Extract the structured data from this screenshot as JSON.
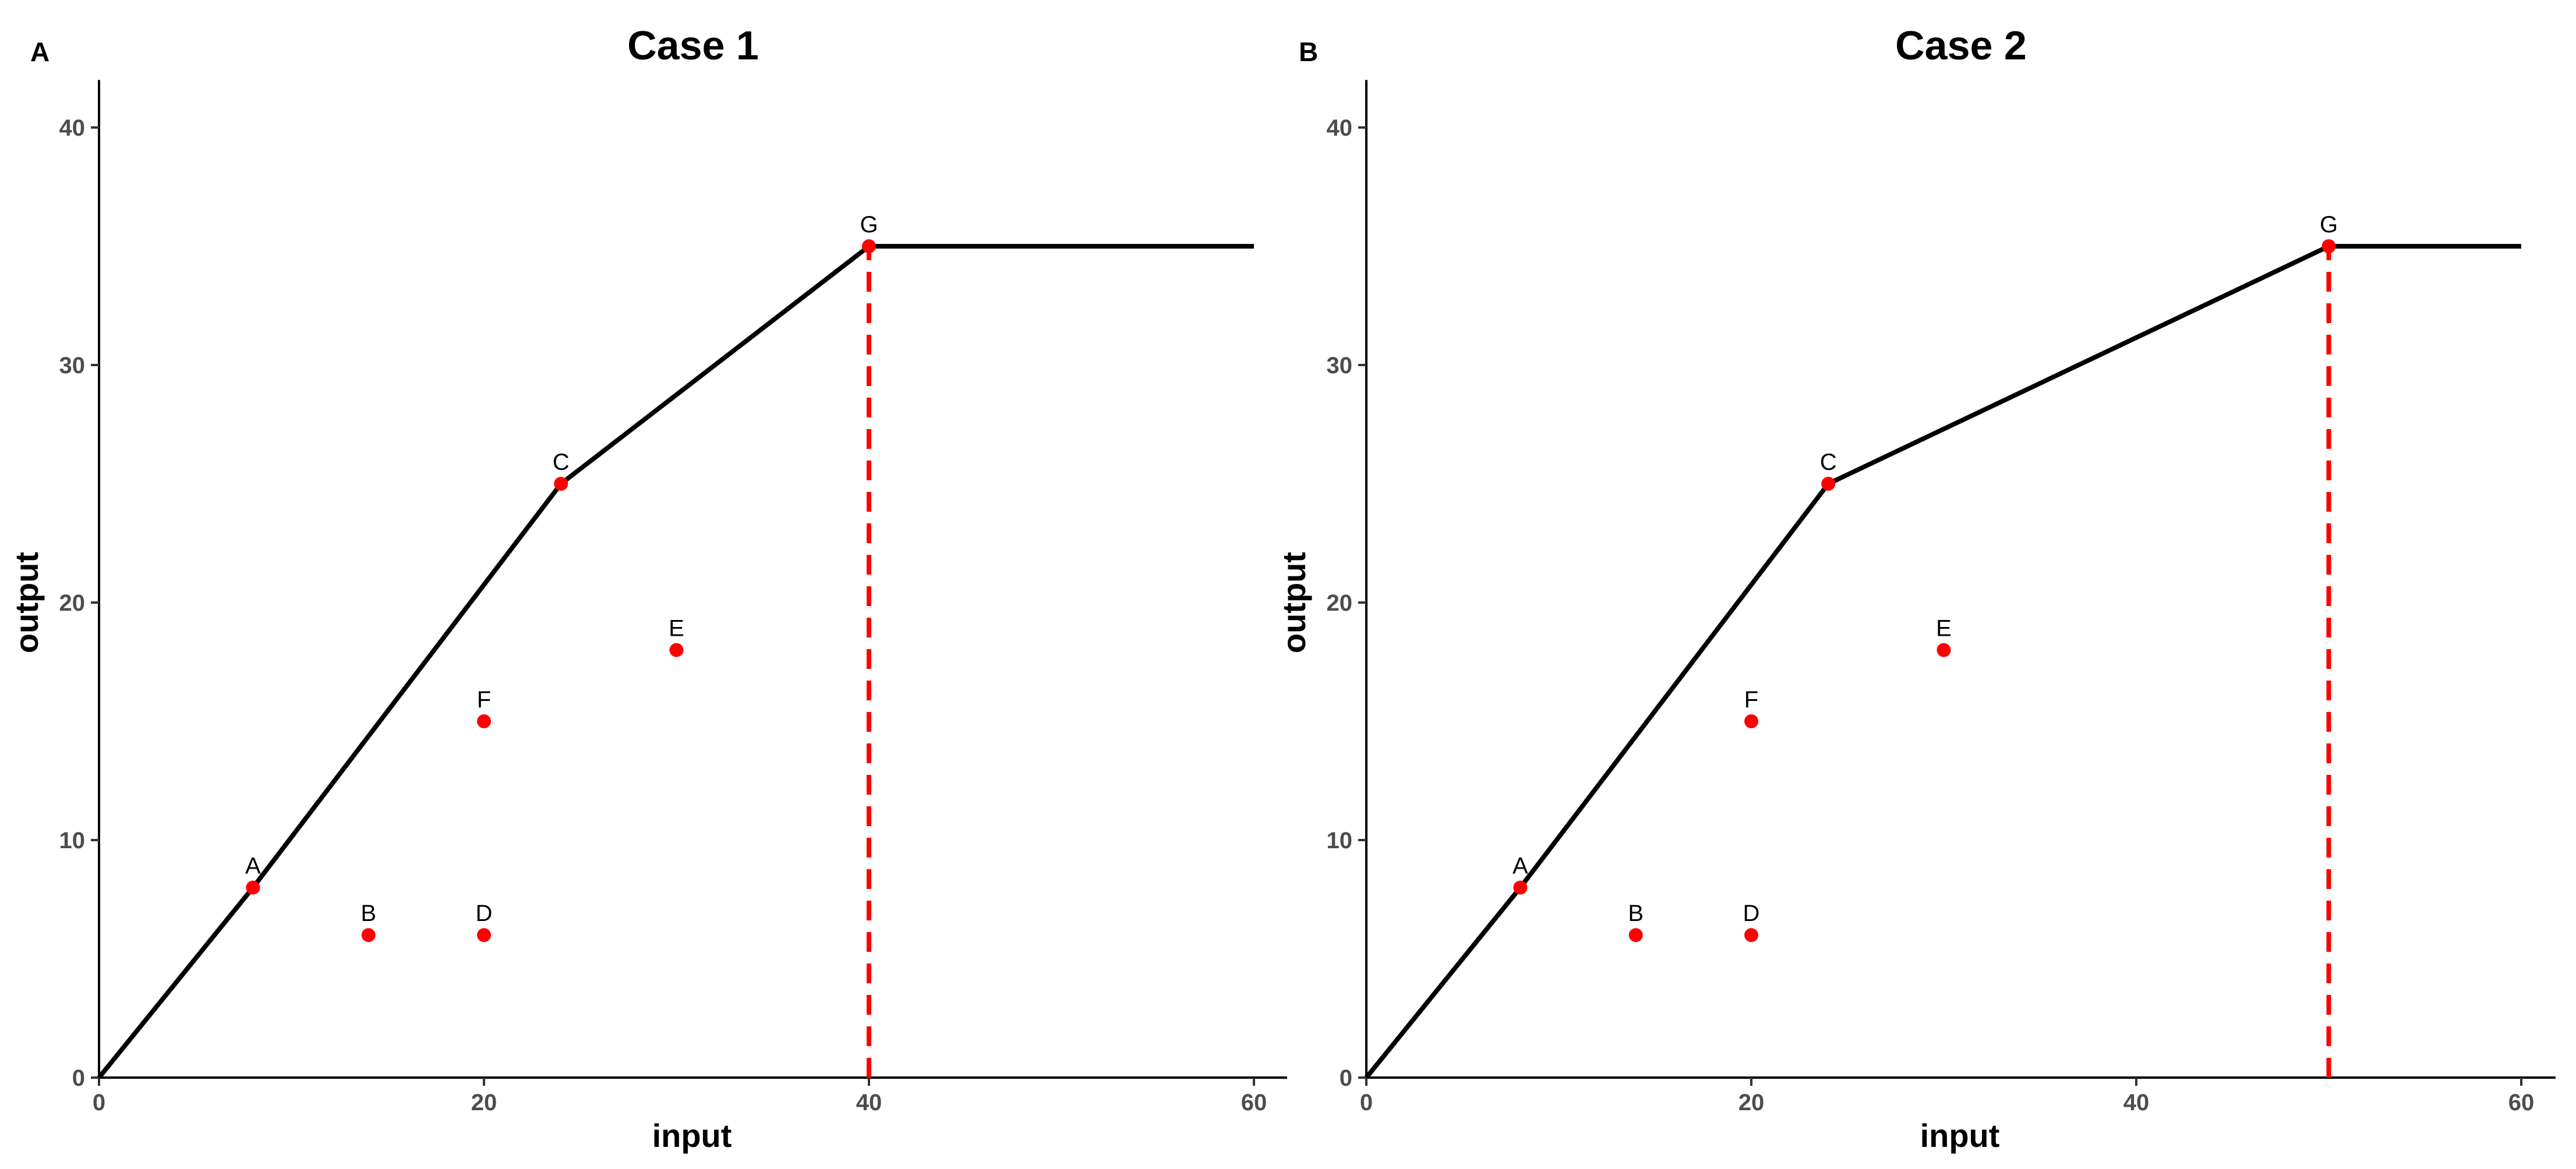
{
  "chart_data": [
    {
      "type": "line",
      "panel_label": "A",
      "title": "Case 1",
      "xlabel": "input",
      "ylabel": "output",
      "xlim": [
        0,
        62
      ],
      "ylim": [
        0,
        42
      ],
      "xticks": [
        0,
        20,
        40,
        60
      ],
      "yticks": [
        0,
        10,
        20,
        30,
        40
      ],
      "grid": false,
      "frontier": {
        "x": [
          0,
          8,
          24,
          40,
          60
        ],
        "y": [
          0,
          8,
          25,
          35,
          35
        ]
      },
      "vertical_dashed_line": {
        "x": 40,
        "y_from": 0,
        "y_to": 35,
        "color": "#ff0000"
      },
      "points": [
        {
          "label": "A",
          "x": 8,
          "y": 8
        },
        {
          "label": "B",
          "x": 14,
          "y": 6
        },
        {
          "label": "C",
          "x": 24,
          "y": 25
        },
        {
          "label": "D",
          "x": 20,
          "y": 6
        },
        {
          "label": "E",
          "x": 30,
          "y": 18
        },
        {
          "label": "F",
          "x": 20,
          "y": 15
        },
        {
          "label": "G",
          "x": 40,
          "y": 35
        }
      ],
      "point_color": "#ff0000",
      "line_color": "#000000"
    },
    {
      "type": "line",
      "panel_label": "B",
      "title": "Case 2",
      "xlabel": "input",
      "ylabel": "output",
      "xlim": [
        0,
        62
      ],
      "ylim": [
        0,
        42
      ],
      "xticks": [
        0,
        20,
        40,
        60
      ],
      "yticks": [
        0,
        10,
        20,
        30,
        40
      ],
      "grid": false,
      "frontier": {
        "x": [
          0,
          8,
          24,
          50,
          60
        ],
        "y": [
          0,
          8,
          25,
          35,
          35
        ]
      },
      "vertical_dashed_line": {
        "x": 50,
        "y_from": 0,
        "y_to": 35,
        "color": "#ff0000"
      },
      "points": [
        {
          "label": "A",
          "x": 8,
          "y": 8
        },
        {
          "label": "B",
          "x": 14,
          "y": 6
        },
        {
          "label": "C",
          "x": 24,
          "y": 25
        },
        {
          "label": "D",
          "x": 20,
          "y": 6
        },
        {
          "label": "E",
          "x": 30,
          "y": 18
        },
        {
          "label": "F",
          "x": 20,
          "y": 15
        },
        {
          "label": "G",
          "x": 50,
          "y": 35
        }
      ],
      "point_color": "#ff0000",
      "line_color": "#000000"
    }
  ]
}
